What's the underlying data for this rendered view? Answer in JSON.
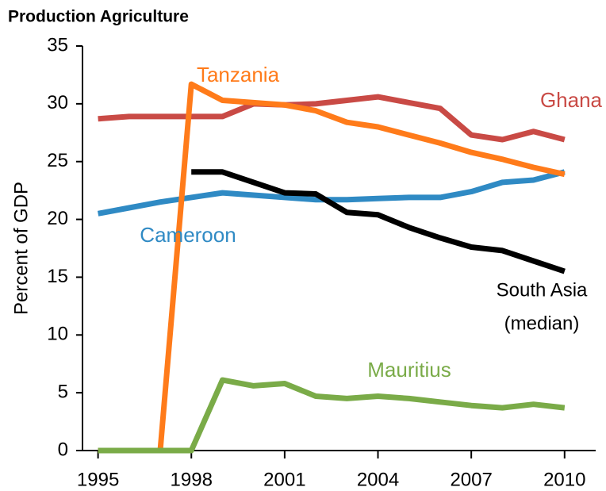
{
  "chart_data": {
    "type": "line",
    "title": "Production Agriculture",
    "y_label": "Percent of GDP",
    "x": [
      1995,
      1996,
      1997,
      1998,
      1999,
      2000,
      2001,
      2002,
      2003,
      2004,
      2005,
      2006,
      2007,
      2008,
      2009,
      2010
    ],
    "xlim": [
      1994.5,
      2011
    ],
    "xticks": [
      1995,
      1998,
      2001,
      2004,
      2007,
      2010
    ],
    "ylim": [
      0,
      35
    ],
    "yticks": [
      0,
      5,
      10,
      15,
      20,
      25,
      30,
      35
    ],
    "series": [
      {
        "name": "Ghana",
        "color": "#c94a45",
        "values": [
          28.7,
          28.9,
          28.9,
          28.9,
          28.9,
          30.0,
          29.9,
          30.0,
          30.3,
          30.6,
          30.1,
          29.6,
          27.3,
          26.9,
          27.6,
          26.9
        ]
      },
      {
        "name": "Cameroon",
        "color": "#2f8ac4",
        "values": [
          20.5,
          21.0,
          21.5,
          21.9,
          22.3,
          22.1,
          21.9,
          21.7,
          21.7,
          21.8,
          21.9,
          21.9,
          22.4,
          23.2,
          23.4,
          24.1
        ]
      },
      {
        "name": "South Asia (median)",
        "color": "#000000",
        "values": [
          null,
          null,
          null,
          24.1,
          24.1,
          23.2,
          22.3,
          22.2,
          20.6,
          20.4,
          19.3,
          18.4,
          17.6,
          17.3,
          16.4,
          15.5
        ]
      },
      {
        "name": "Tanzania",
        "color": "#ff7b1a",
        "values": [
          0,
          0,
          0,
          31.7,
          30.3,
          30.1,
          29.9,
          29.4,
          28.4,
          28.0,
          27.3,
          26.6,
          25.8,
          25.2,
          24.5,
          23.9
        ]
      },
      {
        "name": "Mauritius",
        "color": "#7aab48",
        "values": [
          0,
          0,
          0,
          0,
          6.1,
          5.6,
          5.8,
          4.7,
          4.5,
          4.7,
          4.5,
          4.2,
          3.9,
          3.7,
          4.0,
          3.7
        ]
      }
    ],
    "annotations": [
      "Tanzania",
      "Ghana",
      "Cameroon",
      "South Asia",
      "(median)",
      "Mauritius"
    ]
  }
}
